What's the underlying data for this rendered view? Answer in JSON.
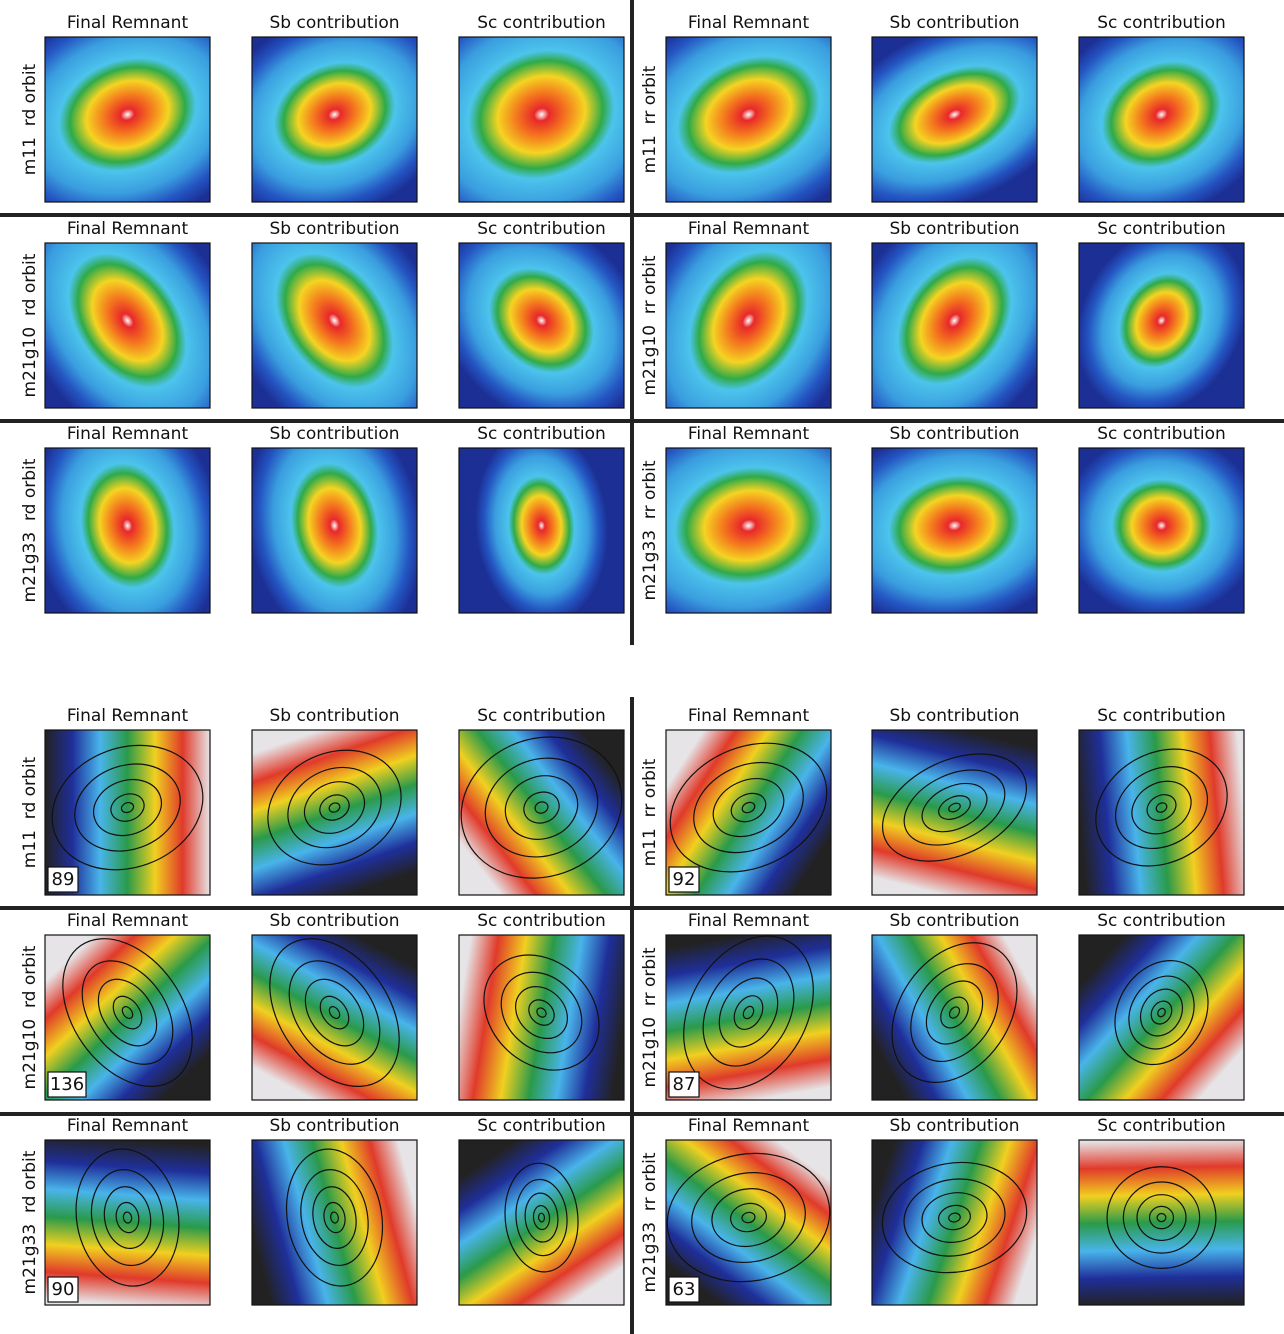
{
  "density_maps": {
    "rows": [
      {
        "left": {
          "label": "m11  rd orbit",
          "panels": [
            "Final Remnant",
            "Sb contribution",
            "Sc contribution"
          ]
        },
        "right": {
          "label": "m11  rr orbit",
          "panels": [
            "Final Remnant",
            "Sb contribution",
            "Sc contribution"
          ]
        }
      },
      {
        "left": {
          "label": "m21g10  rd orbit",
          "panels": [
            "Final Remnant",
            "Sb contribution",
            "Sc contribution"
          ]
        },
        "right": {
          "label": "m21g10  rr orbit",
          "panels": [
            "Final Remnant",
            "Sb contribution",
            "Sc contribution"
          ]
        }
      },
      {
        "left": {
          "label": "m21g33  rd orbit",
          "panels": [
            "Final Remnant",
            "Sb contribution",
            "Sc contribution"
          ]
        },
        "right": {
          "label": "m21g33  rr orbit",
          "panels": [
            "Final Remnant",
            "Sb contribution",
            "Sc contribution"
          ]
        }
      }
    ]
  },
  "velocity_maps": {
    "rows": [
      {
        "left": {
          "label": "m11  rd orbit",
          "panels": [
            "Final Remnant",
            "Sb contribution",
            "Sc contribution"
          ],
          "value": 89
        },
        "right": {
          "label": "m11  rr orbit",
          "panels": [
            "Final Remnant",
            "Sb contribution",
            "Sc contribution"
          ],
          "value": 92
        }
      },
      {
        "left": {
          "label": "m21g10  rd orbit",
          "panels": [
            "Final Remnant",
            "Sb contribution",
            "Sc contribution"
          ],
          "value": 136
        },
        "right": {
          "label": "m21g10  rr orbit",
          "panels": [
            "Final Remnant",
            "Sb contribution",
            "Sc contribution"
          ],
          "value": 87
        }
      },
      {
        "left": {
          "label": "m21g33  rd orbit",
          "panels": [
            "Final Remnant",
            "Sb contribution",
            "Sc contribution"
          ],
          "value": 90
        },
        "right": {
          "label": "m21g33  rr orbit",
          "panels": [
            "Final Remnant",
            "Sb contribution",
            "Sc contribution"
          ],
          "value": 63
        }
      }
    ]
  }
}
